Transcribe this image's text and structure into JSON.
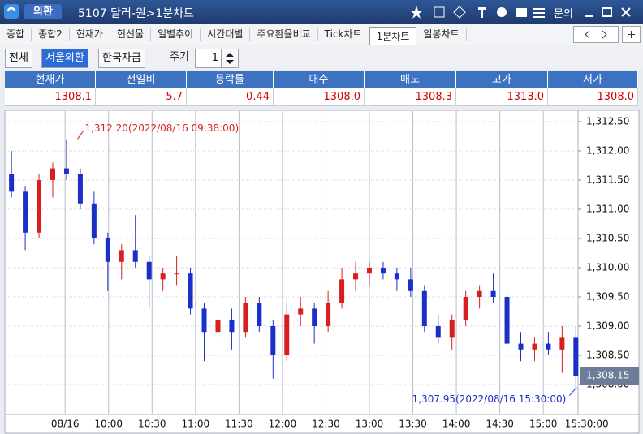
{
  "window": {
    "badge": "외환",
    "screen": "5107 달러-원>1분차트",
    "menu": "문의"
  },
  "tabs": [
    "종합",
    "종합2",
    "현재가",
    "현선물",
    "일별추이",
    "시간대별",
    "주요환율비교",
    "Tick차트",
    "1분차트",
    "일봉차트"
  ],
  "toolbar": {
    "buttons": [
      "전체",
      "서울외환",
      "한국자금"
    ],
    "period_label": "주기",
    "period_value": "1"
  },
  "quote_table": {
    "headers": [
      "현재가",
      "전일비",
      "등락률",
      "매수",
      "매도",
      "고가",
      "저가"
    ],
    "values": [
      "1308.1",
      "5.7",
      "0.44",
      "1308.0",
      "1308.3",
      "1313.0",
      "1308.0"
    ]
  },
  "chart_data": {
    "type": "candlestick",
    "up_color": "#d81e1e",
    "down_color": "#1a2fc8",
    "grid": true,
    "x": [
      533,
      542.5,
      552,
      561.5,
      571,
      580.5,
      590,
      599.5,
      609,
      618.5,
      628,
      637.5,
      647,
      656.5,
      666,
      675.5,
      685,
      694.5,
      704,
      713.5,
      723,
      732.5,
      742,
      751.5,
      761,
      770.5,
      780,
      789.5,
      799,
      808.5,
      818,
      827.5,
      837,
      846.5,
      856,
      865.5,
      875,
      884.5,
      894,
      903.5,
      913,
      922.5
    ],
    "open": [
      1311.6,
      1311.3,
      1310.6,
      1311.5,
      1311.7,
      1311.6,
      1311.1,
      1310.5,
      1310.1,
      1310.3,
      1310.1,
      1309.8,
      1309.9,
      1309.9,
      1309.3,
      1308.9,
      1309.1,
      1308.9,
      1309.4,
      1309.0,
      1308.5,
      1309.2,
      1309.3,
      1309.0,
      1309.4,
      1309.8,
      1309.9,
      1310.0,
      1309.9,
      1309.8,
      1309.6,
      1309.0,
      1308.8,
      1309.1,
      1309.5,
      1309.6,
      1309.5,
      1308.7,
      1308.6,
      1308.7,
      1308.6,
      1308.8
    ],
    "high": [
      1312.0,
      1311.4,
      1311.6,
      1311.8,
      1312.2,
      1311.7,
      1311.3,
      1310.6,
      1310.4,
      1310.9,
      1310.2,
      1310.0,
      1310.2,
      1310.0,
      1309.4,
      1309.2,
      1309.3,
      1309.5,
      1309.5,
      1309.1,
      1309.4,
      1309.5,
      1309.4,
      1309.6,
      1310.0,
      1310.1,
      1310.1,
      1310.1,
      1310.0,
      1310.0,
      1309.7,
      1309.2,
      1309.2,
      1309.6,
      1309.7,
      1309.9,
      1309.6,
      1308.9,
      1308.8,
      1308.9,
      1309.0,
      1309.0
    ],
    "low": [
      1311.2,
      1310.3,
      1310.5,
      1311.2,
      1311.5,
      1311.0,
      1310.4,
      1309.6,
      1309.8,
      1310.0,
      1309.3,
      1309.6,
      1309.7,
      1309.2,
      1308.4,
      1308.7,
      1308.6,
      1308.8,
      1308.9,
      1308.1,
      1308.4,
      1309.0,
      1308.7,
      1308.9,
      1309.3,
      1309.6,
      1309.7,
      1309.8,
      1309.6,
      1309.5,
      1308.9,
      1308.7,
      1308.6,
      1309.0,
      1309.3,
      1309.4,
      1308.5,
      1308.4,
      1308.4,
      1308.5,
      1308.2,
      1307.95
    ],
    "close": [
      1311.3,
      1310.6,
      1311.5,
      1311.7,
      1311.6,
      1311.1,
      1310.5,
      1310.1,
      1310.3,
      1310.1,
      1309.8,
      1309.9,
      1309.9,
      1309.3,
      1308.9,
      1309.1,
      1308.9,
      1309.4,
      1309.0,
      1308.5,
      1309.2,
      1309.3,
      1309.0,
      1309.4,
      1309.8,
      1309.9,
      1310.0,
      1309.9,
      1309.8,
      1309.6,
      1309.0,
      1308.8,
      1309.1,
      1309.5,
      1309.6,
      1309.5,
      1308.7,
      1308.6,
      1308.7,
      1308.6,
      1308.8,
      1308.15
    ],
    "xlim": [
      529,
      924
    ],
    "xticks": [
      {
        "value": 570,
        "label": "08/16"
      },
      {
        "value": 600,
        "label": "10:00"
      },
      {
        "value": 630,
        "label": "10:30"
      },
      {
        "value": 660,
        "label": "11:00"
      },
      {
        "value": 690,
        "label": "11:30"
      },
      {
        "value": 720,
        "label": "12:00"
      },
      {
        "value": 750,
        "label": "12:30"
      },
      {
        "value": 780,
        "label": "13:00"
      },
      {
        "value": 810,
        "label": "13:30"
      },
      {
        "value": 840,
        "label": "14:00"
      },
      {
        "value": 870,
        "label": "14:30"
      },
      {
        "value": 900,
        "label": "15:00"
      },
      {
        "value": 930,
        "label": "15:30:00"
      }
    ],
    "ylim": [
      1307.5,
      1312.68
    ],
    "yticks": [
      {
        "value": 1312.5,
        "label": "1,312.50"
      },
      {
        "value": 1312,
        "label": "1,312.00"
      },
      {
        "value": 1311.5,
        "label": "1,311.50"
      },
      {
        "value": 1311,
        "label": "1,311.00"
      },
      {
        "value": 1310.5,
        "label": "1,310.50"
      },
      {
        "value": 1310,
        "label": "1,310.00"
      },
      {
        "value": 1309.5,
        "label": "1,309.50"
      },
      {
        "value": 1309,
        "label": "1,309.00"
      },
      {
        "value": 1308.5,
        "label": "1,308.50"
      },
      {
        "value": 1308,
        "label": "1,308.00"
      }
    ],
    "annotations": [
      {
        "x": 578,
        "value": 1312.2,
        "label": "1,312.20(2022/08/16 09:38:00)",
        "color": "#d81e1e"
      },
      {
        "x": 922.5,
        "value": 1307.95,
        "label": "1,307.95(2022/08/16 15:30:00)",
        "color": "#1a2fc8"
      }
    ],
    "last_price": {
      "value": 1308.15,
      "label": "1,308.15"
    }
  }
}
